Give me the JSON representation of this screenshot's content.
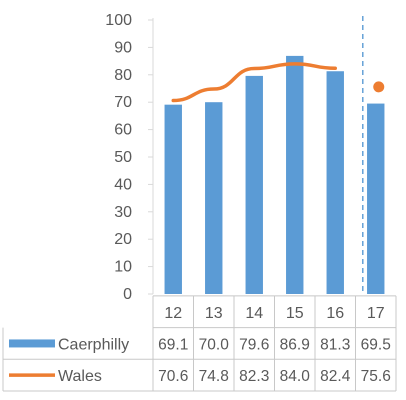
{
  "chart_data": {
    "type": "bar",
    "categories": [
      "12",
      "13",
      "14",
      "15",
      "16",
      "17"
    ],
    "ylim": [
      0,
      100
    ],
    "yticks": [
      0,
      10,
      20,
      30,
      40,
      50,
      60,
      70,
      80,
      90,
      100
    ],
    "grid": false,
    "legend": "data-table-left",
    "title": "",
    "xlabel": "",
    "ylabel": "",
    "series": [
      {
        "name": "Caerphilly",
        "type": "bar",
        "color": "#5B9BD5",
        "values": [
          69.1,
          70.0,
          79.6,
          86.9,
          81.3,
          69.5
        ],
        "labels": [
          "69.1",
          "70.0",
          "79.6",
          "86.9",
          "81.3",
          "69.5"
        ]
      },
      {
        "name": "Wales",
        "type": "line",
        "color": "#ED7D31",
        "values": [
          70.6,
          74.8,
          82.3,
          84.0,
          82.4,
          75.6
        ],
        "labels": [
          "70.6",
          "74.8",
          "82.3",
          "84.0",
          "82.4",
          "75.6"
        ],
        "line_segment_categories": [
          "12",
          "13",
          "14",
          "15",
          "16"
        ],
        "marker_only_categories": [
          "17"
        ]
      }
    ],
    "annotations": [
      {
        "type": "dashed-vertical-line",
        "between": [
          "16",
          "17"
        ],
        "color": "#5B9BD5"
      }
    ]
  }
}
